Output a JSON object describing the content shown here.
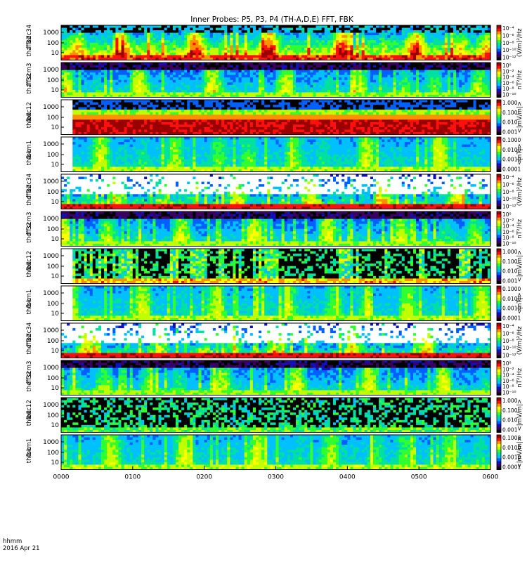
{
  "chart_data": {
    "type": "heatmap",
    "title": "Inner Probes: P5, P3, P4 (TH-A,D,E) FFT, FBK",
    "x_axis": {
      "tick_labels": [
        "0000",
        "0100",
        "0200",
        "0300",
        "0400",
        "0500",
        "0600"
      ],
      "corner_label": "hhmm",
      "date_label": "2016 Apr 21",
      "range_minutes": [
        0,
        360
      ]
    },
    "panels": [
      {
        "ylabel": [
          "tha",
          "fff",
          "32",
          "edc34"
        ],
        "yticks": [
          "1000",
          "100",
          "10"
        ],
        "cbar_ticks": [
          "10⁻⁴",
          "10⁻⁶",
          "10⁻⁸",
          "10⁻¹⁰",
          "10⁻¹²"
        ],
        "cbar_label": "(V/m)²/Hz",
        "kind": "ffe",
        "blank_until": 0
      },
      {
        "ylabel": [
          "tha",
          "fff",
          "32",
          "scm3"
        ],
        "yticks": [
          "1000",
          "100",
          "10"
        ],
        "cbar_ticks": [
          "10⁰",
          "10⁻²",
          "10⁻⁴",
          "10⁻⁶",
          "10⁻⁸",
          "10⁻¹⁰"
        ],
        "cbar_label": "nT²/Hz",
        "kind": "ffs",
        "blank_until": 0
      },
      {
        "ylabel": [
          "tha",
          "fbk",
          "edc12"
        ],
        "yticks": [
          "1000",
          "100",
          "10"
        ],
        "cbar_ticks": [
          "1.000",
          "0.100",
          "0.010",
          "0.001"
        ],
        "cbar_label": "<|mV/m|>",
        "kind": "fbe",
        "blank_until": 0.025
      },
      {
        "ylabel": [
          "tha",
          "fbk",
          "scm1"
        ],
        "yticks": [
          "1000",
          "100",
          "10"
        ],
        "cbar_ticks": [
          "0.1000",
          "0.0100",
          "0.0010",
          "0.0001"
        ],
        "cbar_label": "<|nT|>",
        "kind": "fbs",
        "blank_until": 0.025
      },
      {
        "ylabel": [
          "thd",
          "fff",
          "32",
          "edc34"
        ],
        "yticks": [
          "1000",
          "100",
          "10"
        ],
        "cbar_ticks": [
          "10⁻⁴",
          "10⁻⁶",
          "10⁻⁸",
          "10⁻¹⁰",
          "10⁻¹²"
        ],
        "cbar_label": "(V/m)²/Hz",
        "kind": "ffe2",
        "blank_until": 0
      },
      {
        "ylabel": [
          "thd",
          "fff",
          "32",
          "scm3"
        ],
        "yticks": [
          "1000",
          "100",
          "10"
        ],
        "cbar_ticks": [
          "10⁰",
          "10⁻²",
          "10⁻⁴",
          "10⁻⁶",
          "10⁻⁸",
          "10⁻¹⁰"
        ],
        "cbar_label": "nT²/Hz",
        "kind": "ffs",
        "blank_until": 0
      },
      {
        "ylabel": [
          "thd",
          "fbk",
          "edc12"
        ],
        "yticks": [
          "1000",
          "100",
          "10"
        ],
        "cbar_ticks": [
          "1.000",
          "0.100",
          "0.010",
          "0.001"
        ],
        "cbar_label": "<|mV/m|>",
        "kind": "fbe2",
        "blank_until": 0.025
      },
      {
        "ylabel": [
          "thd",
          "fbk",
          "scm1"
        ],
        "yticks": [
          "1000",
          "100",
          "10"
        ],
        "cbar_ticks": [
          "0.1000",
          "0.0100",
          "0.0010",
          "0.0001"
        ],
        "cbar_label": "<|nT|>",
        "kind": "fbs",
        "blank_until": 0.025
      },
      {
        "ylabel": [
          "the",
          "fff",
          "32",
          "edc34"
        ],
        "yticks": [
          "1000",
          "100",
          "10"
        ],
        "cbar_ticks": [
          "10⁻⁴",
          "10⁻⁶",
          "10⁻⁸",
          "10⁻¹⁰",
          "10⁻¹²"
        ],
        "cbar_label": "(V/m)²/Hz",
        "kind": "ffe3",
        "blank_until": 0
      },
      {
        "ylabel": [
          "the",
          "fff",
          "32",
          "scm3"
        ],
        "yticks": [
          "1000",
          "100",
          "10"
        ],
        "cbar_ticks": [
          "10⁰",
          "10⁻²",
          "10⁻⁴",
          "10⁻⁶",
          "10⁻⁸",
          "10⁻¹⁰"
        ],
        "cbar_label": "nT²/Hz",
        "kind": "ffs",
        "blank_until": 0
      },
      {
        "ylabel": [
          "the",
          "fbk",
          "edc12"
        ],
        "yticks": [
          "1000",
          "100",
          "10"
        ],
        "cbar_ticks": [
          "1.000",
          "0.100",
          "0.010",
          "0.001"
        ],
        "cbar_label": "<|mV/m|>",
        "kind": "fbe3",
        "blank_until": 0
      },
      {
        "ylabel": [
          "the",
          "fbk",
          "scm1"
        ],
        "yticks": [
          "1000",
          "100",
          "10"
        ],
        "cbar_ticks": [
          "0.1000",
          "0.0100",
          "0.0010",
          "0.0001"
        ],
        "cbar_label": "<|mV/m|>",
        "kind": "fbs",
        "blank_until": 0
      }
    ],
    "colorscale": [
      "#000000",
      "#3a0060",
      "#1010c0",
      "#0060ff",
      "#00c0ff",
      "#00e0a0",
      "#30ff30",
      "#c0ff00",
      "#ffff00",
      "#ff9000",
      "#ff1010",
      "#9a0000"
    ]
  }
}
